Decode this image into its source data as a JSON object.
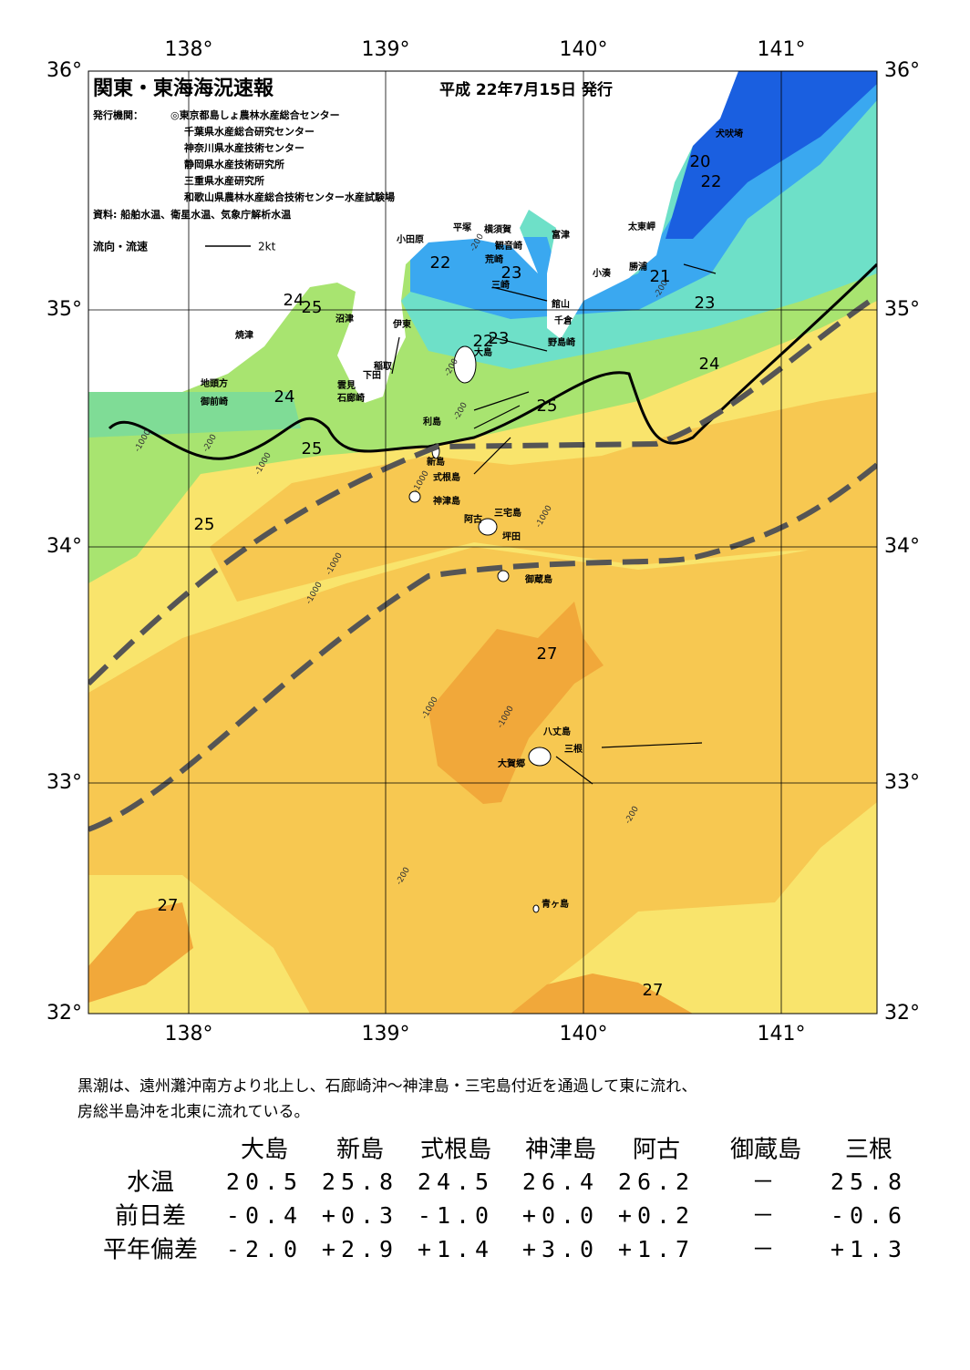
{
  "header": {
    "title": "関東・東海海況速報",
    "date": "平成 22年7月15日 発行",
    "publisher_label": "発行機関：",
    "publishers": [
      "◎東京都島しょ農林水産総合センター",
      "千葉県水産総合研究センター",
      "神奈川県水産技術センター",
      "静岡県水産技術研究所",
      "三重県水産研究所",
      "和歌山県農林水産総合技術センター水産試験場"
    ],
    "source": "資料: 船舶水温、衛星水温、気象庁解析水温",
    "legend_label": "流向・流速",
    "legend_speed": "2kt"
  },
  "axes": {
    "lon_labels": [
      "138°",
      "139°",
      "140°",
      "141°"
    ],
    "lat_labels": [
      "36°",
      "35°",
      "34°",
      "33°",
      "32°"
    ]
  },
  "place_names": [
    "犬吠埼",
    "太東岬",
    "勝浦",
    "小湊",
    "富津",
    "平塚",
    "横須賀",
    "観音崎",
    "荒崎",
    "三崎",
    "小田原",
    "館山",
    "千倉",
    "野島崎",
    "沼津",
    "伊東",
    "焼津",
    "稲取",
    "下田",
    "雲見",
    "石廊崎",
    "地頭方",
    "御前崎",
    "大島",
    "利島",
    "新島",
    "式根島",
    "神津島",
    "三宅島",
    "阿古",
    "坪田",
    "御蔵島",
    "八丈島",
    "三根",
    "大賀郷",
    "青ヶ島"
  ],
  "isotherm_labels": [
    "20",
    "22",
    "22",
    "23",
    "21",
    "23",
    "24",
    "25",
    "22",
    "23",
    "24",
    "25",
    "24",
    "25",
    "25",
    "27",
    "27",
    "27"
  ],
  "depth_labels": [
    "-200",
    "-200",
    "-200",
    "-200",
    "-200",
    "-1000",
    "-1000",
    "-1000",
    "-1000",
    "-1000",
    "-1000",
    "-1000",
    "-1000",
    "-200",
    "-200"
  ],
  "summary": [
    "黒潮は、遠州灘沖南方より北上し、石廊崎沖～神津島・三宅島付近を通過して東に流れ、",
    "房総半島沖を北東に流れている。"
  ],
  "table": {
    "columns": [
      "大島",
      "新島",
      "式根島",
      "神津島",
      "阿古",
      "御蔵島",
      "三根"
    ],
    "rows": [
      {
        "label": "水温",
        "cells": [
          "20.5",
          "25.8",
          "24.5",
          "26.4",
          "26.2",
          "－",
          "25.8"
        ]
      },
      {
        "label": "前日差",
        "cells": [
          "-0.4",
          "+0.3",
          "-1.0",
          "+0.0",
          "+0.2",
          "－",
          "-0.6"
        ]
      },
      {
        "label": "平年偏差",
        "cells": [
          "-2.0",
          "+2.9",
          "+1.4",
          "+3.0",
          "+1.7",
          "－",
          "+1.3"
        ]
      }
    ]
  }
}
